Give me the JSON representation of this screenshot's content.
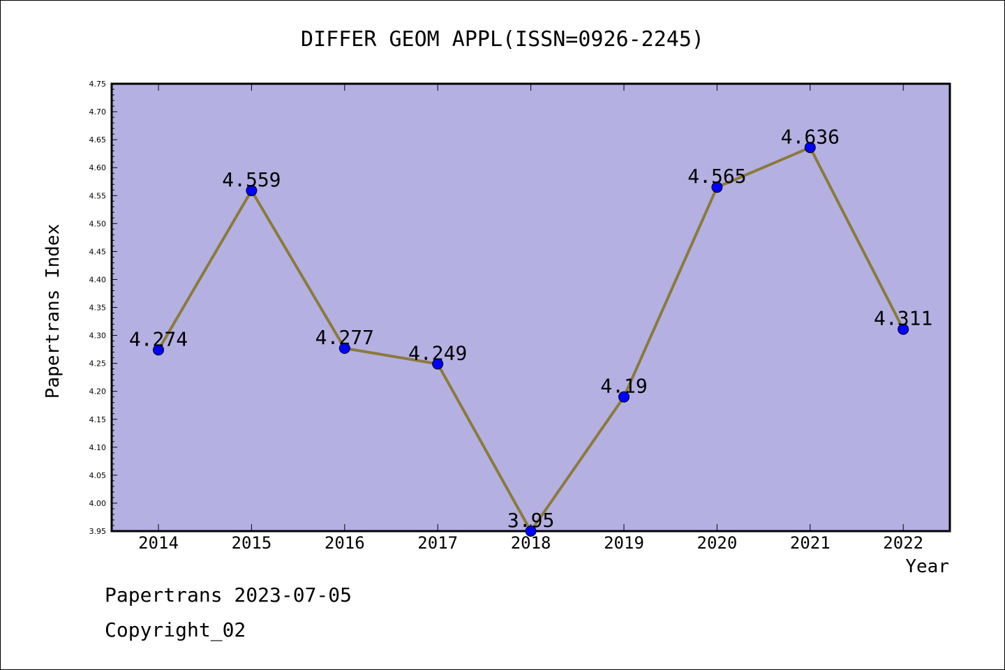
{
  "footer": {
    "line1": "Papertrans 2023-07-05",
    "line2": "Copyright_02"
  },
  "colors": {
    "plot_background": "#b5b0e2",
    "line": "#8b7a3a",
    "marker": "#0000ff",
    "axis": "#000000"
  },
  "chart_data": {
    "type": "line",
    "title": "DIFFER GEOM APPL(ISSN=0926-2245)",
    "xlabel": "Year",
    "ylabel": "Papertrans Index",
    "categories": [
      "2014",
      "2015",
      "2016",
      "2017",
      "2018",
      "2019",
      "2020",
      "2021",
      "2022"
    ],
    "series": [
      {
        "values": [
          4.274,
          4.559,
          4.277,
          4.249,
          3.95,
          4.19,
          4.565,
          4.636,
          4.311
        ],
        "labels": [
          "4.274",
          "4.559",
          "4.277",
          "4.249",
          "3.95",
          "4.19",
          "4.565",
          "4.636",
          "4.311"
        ]
      }
    ],
    "ylim": [
      3.95,
      4.75
    ],
    "y_ticks": [
      "3.95",
      "4.00",
      "4.05",
      "4.10",
      "4.15",
      "4.20",
      "4.25",
      "4.30",
      "4.35",
      "4.40",
      "4.45",
      "4.50",
      "4.55",
      "4.60",
      "4.65",
      "4.70",
      "4.75"
    ],
    "grid": false,
    "legend": "none"
  }
}
